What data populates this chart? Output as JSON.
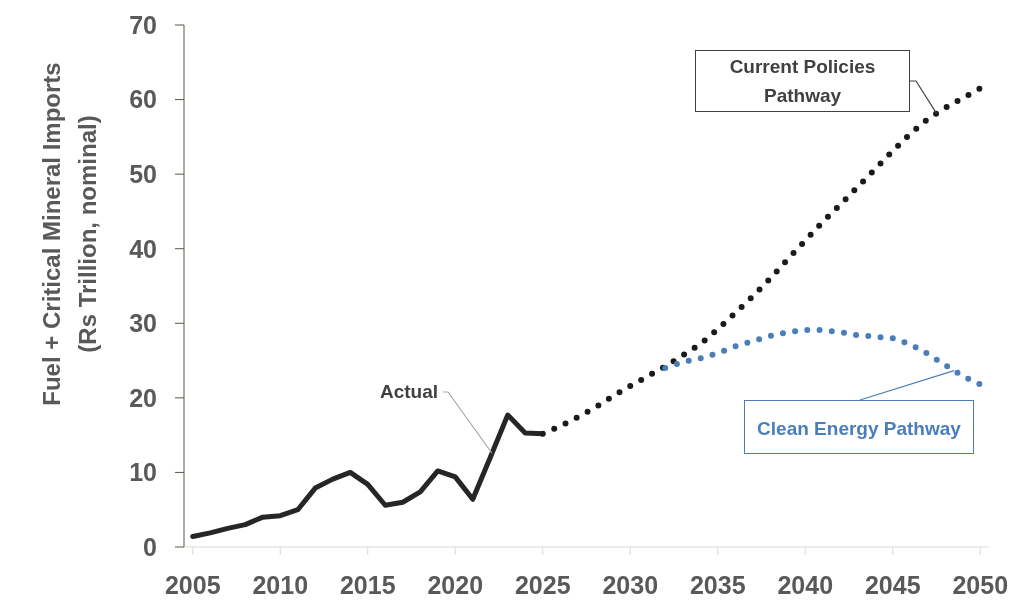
{
  "chart_data": {
    "type": "line",
    "ylabel": "Fuel + Critical Mineral Imports (Rs Trillion, nominal)",
    "xlim": [
      2004.5,
      2050.5
    ],
    "xticks": [
      2005,
      2010,
      2015,
      2020,
      2025,
      2030,
      2035,
      2040,
      2045,
      2050
    ],
    "ylim": [
      0,
      70
    ],
    "yticks": [
      0,
      10,
      20,
      30,
      40,
      50,
      60,
      70
    ],
    "series": [
      {
        "name": "Actual",
        "color": "#262626",
        "line_style": "solid",
        "x": [
          2005,
          2006,
          2007,
          2008,
          2009,
          2010,
          2011,
          2012,
          2013,
          2014,
          2015,
          2016,
          2017,
          2018,
          2019,
          2020,
          2021,
          2022,
          2023,
          2024,
          2025
        ],
        "values": [
          1.4,
          1.9,
          2.5,
          3.0,
          4.0,
          4.2,
          5.0,
          7.9,
          9.1,
          10.0,
          8.4,
          5.6,
          6.0,
          7.4,
          10.2,
          9.4,
          6.4,
          12.0,
          17.7,
          15.3,
          15.2
        ]
      },
      {
        "name": "Current Policies Pathway",
        "color": "#1a1a1a",
        "line_style": "dotted",
        "x": [
          2025,
          2026,
          2027,
          2028,
          2029,
          2030,
          2031,
          2032,
          2033,
          2034,
          2035,
          2036,
          2037,
          2038,
          2039,
          2040,
          2041,
          2042,
          2043,
          2044,
          2045,
          2046,
          2047,
          2048,
          2049,
          2050
        ],
        "values": [
          15.2,
          16.2,
          17.4,
          18.7,
          20.2,
          21.6,
          22.9,
          24.2,
          25.7,
          27.2,
          29.2,
          31.4,
          33.6,
          36.0,
          38.6,
          41.1,
          43.6,
          45.9,
          48.3,
          50.7,
          53.1,
          55.4,
          57.4,
          58.9,
          60.2,
          61.5
        ]
      },
      {
        "name": "Clean Energy Pathway",
        "color": "#4a7ebb",
        "line_style": "dotted",
        "x": [
          2032,
          2033,
          2034,
          2035,
          2036,
          2037,
          2038,
          2039,
          2040,
          2041,
          2042,
          2043,
          2044,
          2045,
          2046,
          2047,
          2048,
          2049,
          2050
        ],
        "values": [
          24.0,
          24.8,
          25.3,
          26.0,
          26.9,
          27.6,
          28.3,
          28.8,
          29.1,
          29.1,
          28.8,
          28.4,
          28.2,
          28.0,
          27.2,
          25.9,
          24.4,
          22.9,
          21.8
        ]
      }
    ]
  }
}
